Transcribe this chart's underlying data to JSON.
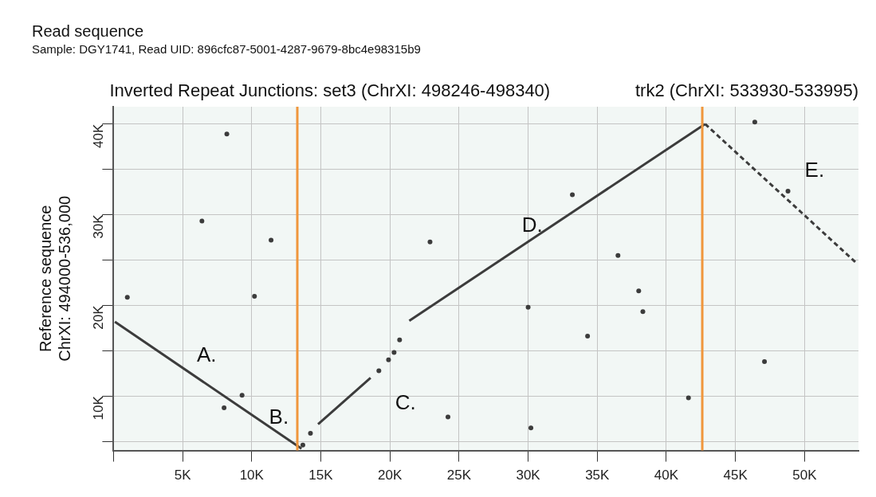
{
  "chart_data": {
    "type": "line",
    "title": "Read sequence",
    "subtitle": "Sample: DGY1741, Read UID: 896cfc87-5001-4287-9679-8bc4e98315b9",
    "ylabel": "Reference sequence\nChrXI: 494000-536,000",
    "annotations": [
      "Inverted Repeat Junctions: set3 (ChrXI: 498246-498340)",
      "trk2 (ChrXI: 533930-533995)",
      "A.",
      "B.",
      "C.",
      "D.",
      "E."
    ],
    "series": [
      {
        "color": "#3c3c3c",
        "x": [
          100,
          13600
        ],
        "values": [
          18200,
          4200
        ]
      },
      {
        "color": "#3c3c3c",
        "x": [
          14800,
          18600
        ],
        "values": [
          6900,
          12000
        ]
      },
      {
        "color": "#3c3c3c",
        "x": [
          21400,
          42800
        ],
        "values": [
          18300,
          40000
        ]
      },
      {
        "color": "#3c3c3c",
        "line_style": "dashed",
        "x": [
          42800,
          53800
        ],
        "values": [
          40000,
          24600
        ]
      },
      {
        "type": "scatter",
        "marker": "circle",
        "color": "#3c3c3c",
        "x": [
          13700,
          14250,
          19200,
          19900,
          20300,
          20700,
          1000,
          8200,
          6400,
          11400,
          10200,
          9300,
          8000,
          22900,
          33200,
          36500,
          38000,
          38300,
          30000,
          34300,
          47100,
          41600,
          24200,
          30200,
          48800,
          46400
        ],
        "values": [
          4600,
          5900,
          12800,
          14000,
          14800,
          16200,
          20900,
          38900,
          29300,
          27200,
          21000,
          10100,
          8700,
          27000,
          32200,
          25500,
          21600,
          19300,
          19800,
          16600,
          13800,
          9800,
          7700,
          6500,
          32600,
          40200
        ]
      }
    ],
    "ref_lines": [
      {
        "axis": "x",
        "value": 13300,
        "color": "#f0963c"
      },
      {
        "axis": "x",
        "value": 42600,
        "color": "#f0963c"
      }
    ],
    "xlim": [
      0,
      53900
    ],
    "ylim": [
      4000,
      41900
    ],
    "xticks": [
      {
        "value": 0,
        "label": null
      },
      {
        "value": 5000,
        "label": "5K"
      },
      {
        "value": 10000,
        "label": "10K"
      },
      {
        "value": 15000,
        "label": "15K"
      },
      {
        "value": 20000,
        "label": "20K"
      },
      {
        "value": 25000,
        "label": "25K"
      },
      {
        "value": 30000,
        "label": "30K"
      },
      {
        "value": 35000,
        "label": "35K"
      },
      {
        "value": 40000,
        "label": "40K"
      },
      {
        "value": 45000,
        "label": "45K"
      },
      {
        "value": 50000,
        "label": "50K"
      }
    ],
    "yticks": [
      {
        "value": 5000,
        "label": null
      },
      {
        "value": 10000,
        "label": "10K"
      },
      {
        "value": 15000,
        "label": null
      },
      {
        "value": 20000,
        "label": "20K"
      },
      {
        "value": 25000,
        "label": null
      },
      {
        "value": 30000,
        "label": "30K"
      },
      {
        "value": 35000,
        "label": null
      },
      {
        "value": 40000,
        "label": "40K"
      }
    ],
    "grid": true,
    "legend": false,
    "marker": "none"
  }
}
